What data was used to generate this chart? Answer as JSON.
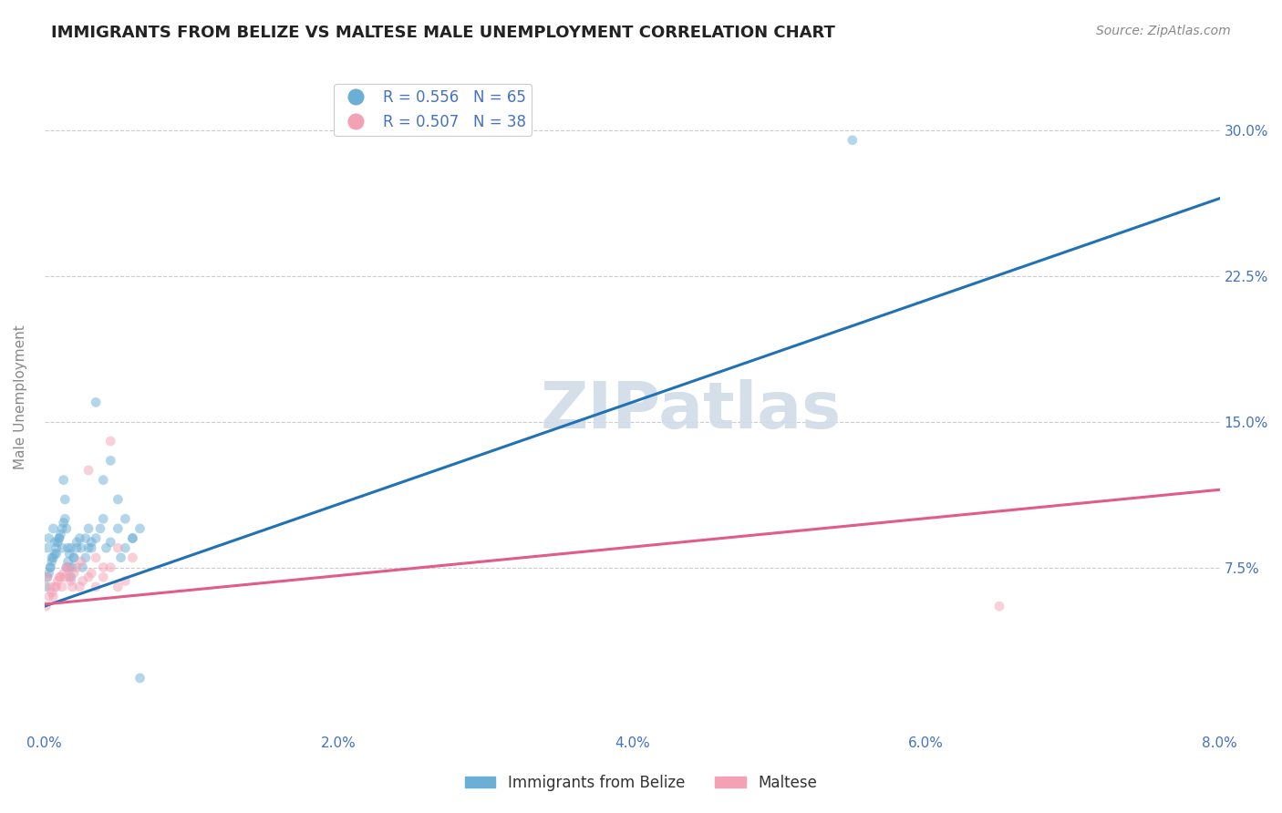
{
  "title": "IMMIGRANTS FROM BELIZE VS MALTESE MALE UNEMPLOYMENT CORRELATION CHART",
  "source": "Source: ZipAtlas.com",
  "xlabel": "",
  "ylabel": "Male Unemployment",
  "series": [
    {
      "name": "Immigrants from Belize",
      "R": 0.556,
      "N": 65,
      "color": "#6baed6",
      "line_color": "#2171b5",
      "x": [
        0.0002,
        0.0003,
        0.0004,
        0.0005,
        0.0006,
        0.0007,
        0.0008,
        0.001,
        0.0012,
        0.0013,
        0.0014,
        0.0015,
        0.0016,
        0.0017,
        0.0018,
        0.002,
        0.0022,
        0.0025,
        0.0028,
        0.003,
        0.0032,
        0.0035,
        0.0038,
        0.004,
        0.0042,
        0.0045,
        0.005,
        0.0055,
        0.006,
        0.0065,
        0.0001,
        0.0002,
        0.0003,
        0.0004,
        0.0005,
        0.0006,
        0.0007,
        0.0008,
        0.0009,
        0.001,
        0.0011,
        0.0012,
        0.0013,
        0.0014,
        0.0015,
        0.0016,
        0.0017,
        0.0018,
        0.0019,
        0.002,
        0.0022,
        0.0024,
        0.0026,
        0.0028,
        0.003,
        0.0032,
        0.0035,
        0.004,
        0.0045,
        0.005,
        0.0052,
        0.0055,
        0.006,
        0.0065,
        0.055
      ],
      "y": [
        0.085,
        0.09,
        0.075,
        0.08,
        0.095,
        0.088,
        0.082,
        0.09,
        0.085,
        0.12,
        0.11,
        0.095,
        0.085,
        0.075,
        0.07,
        0.08,
        0.088,
        0.085,
        0.09,
        0.095,
        0.085,
        0.09,
        0.095,
        0.1,
        0.085,
        0.088,
        0.095,
        0.1,
        0.09,
        0.095,
        0.065,
        0.07,
        0.072,
        0.075,
        0.078,
        0.08,
        0.082,
        0.085,
        0.088,
        0.09,
        0.092,
        0.095,
        0.098,
        0.1,
        0.075,
        0.078,
        0.082,
        0.085,
        0.075,
        0.08,
        0.085,
        0.09,
        0.075,
        0.08,
        0.085,
        0.088,
        0.16,
        0.12,
        0.13,
        0.11,
        0.08,
        0.085,
        0.09,
        0.018,
        0.295
      ],
      "trend_x": [
        0.0,
        0.08
      ],
      "trend_y": [
        0.055,
        0.265
      ]
    },
    {
      "name": "Maltese",
      "R": 0.507,
      "N": 38,
      "color": "#f4a0b5",
      "line_color": "#e05c8a",
      "x": [
        0.0002,
        0.0004,
        0.0006,
        0.0008,
        0.001,
        0.0012,
        0.0014,
        0.0016,
        0.0018,
        0.002,
        0.0022,
        0.0024,
        0.0026,
        0.003,
        0.0032,
        0.0035,
        0.004,
        0.0045,
        0.005,
        0.0055,
        0.0001,
        0.0003,
        0.0005,
        0.0007,
        0.0009,
        0.0011,
        0.0013,
        0.0015,
        0.0017,
        0.0019,
        0.0025,
        0.003,
        0.0035,
        0.004,
        0.0045,
        0.005,
        0.006,
        0.065
      ],
      "y": [
        0.07,
        0.065,
        0.06,
        0.065,
        0.07,
        0.065,
        0.07,
        0.075,
        0.068,
        0.072,
        0.075,
        0.065,
        0.068,
        0.07,
        0.072,
        0.065,
        0.075,
        0.14,
        0.065,
        0.068,
        0.055,
        0.06,
        0.062,
        0.065,
        0.068,
        0.07,
        0.072,
        0.075,
        0.07,
        0.065,
        0.078,
        0.125,
        0.08,
        0.07,
        0.075,
        0.085,
        0.08,
        0.055
      ],
      "trend_x": [
        0.0,
        0.08
      ],
      "trend_y": [
        0.056,
        0.115
      ]
    }
  ],
  "xlim": [
    0.0,
    0.08
  ],
  "ylim": [
    -0.01,
    0.335
  ],
  "yticks": [
    0.0,
    0.075,
    0.15,
    0.225,
    0.3
  ],
  "ytick_labels": [
    "",
    "7.5%",
    "15.0%",
    "22.5%",
    "30.0%"
  ],
  "xticks": [
    0.0,
    0.02,
    0.04,
    0.06,
    0.08
  ],
  "xtick_labels": [
    "0.0%",
    "2.0%",
    "4.0%",
    "6.0%",
    "8.0%"
  ],
  "grid_color": "#cccccc",
  "background_color": "#ffffff",
  "scatter_size": 60,
  "scatter_alpha": 0.5,
  "title_fontsize": 13,
  "axis_label_fontsize": 11,
  "tick_fontsize": 11,
  "legend_fontsize": 12,
  "watermark_text": "ZIPatlas",
  "watermark_color": "#d0dce8",
  "source_text": "Source: ZipAtlas.com",
  "ylabel_color": "#555555",
  "tick_label_color_right": "#4472c4",
  "tick_label_color_bottom": "#4472c4"
}
